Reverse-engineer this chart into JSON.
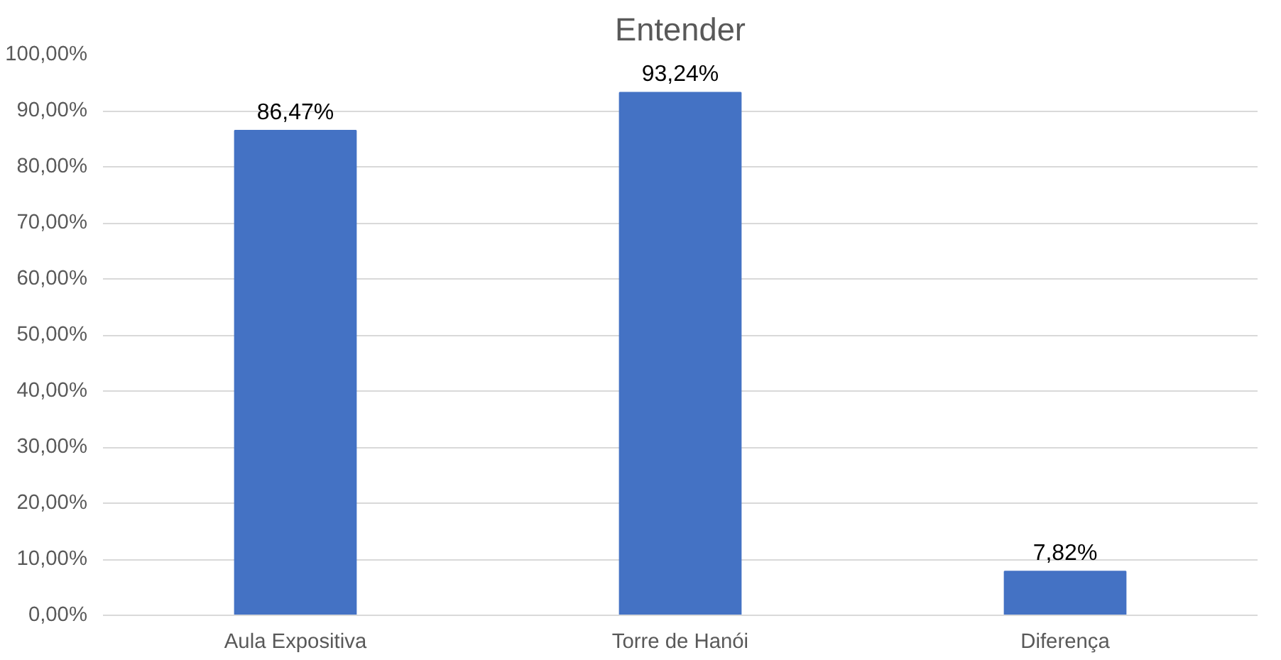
{
  "chart_data": {
    "type": "bar",
    "title": "Entender",
    "categories": [
      "Aula Expositiva",
      "Torre de Hanói",
      "Diferença"
    ],
    "values": [
      86.47,
      93.24,
      7.82
    ],
    "color": "#4472c4",
    "value_labels": [
      "86,47%",
      "93,24%",
      "7,82%"
    ],
    "ylim": [
      0,
      100
    ],
    "yticks": [
      {
        "value": 0,
        "label": "0,00%"
      },
      {
        "value": 10,
        "label": "10,00%"
      },
      {
        "value": 20,
        "label": "20,00%"
      },
      {
        "value": 30,
        "label": "30,00%"
      },
      {
        "value": 40,
        "label": "40,00%"
      },
      {
        "value": 50,
        "label": "50,00%"
      },
      {
        "value": 60,
        "label": "60,00%"
      },
      {
        "value": 70,
        "label": "70,00%"
      },
      {
        "value": 80,
        "label": "80,00%"
      },
      {
        "value": 90,
        "label": "90,00%"
      },
      {
        "value": 100,
        "label": "100,00%"
      }
    ],
    "grid": "y"
  }
}
